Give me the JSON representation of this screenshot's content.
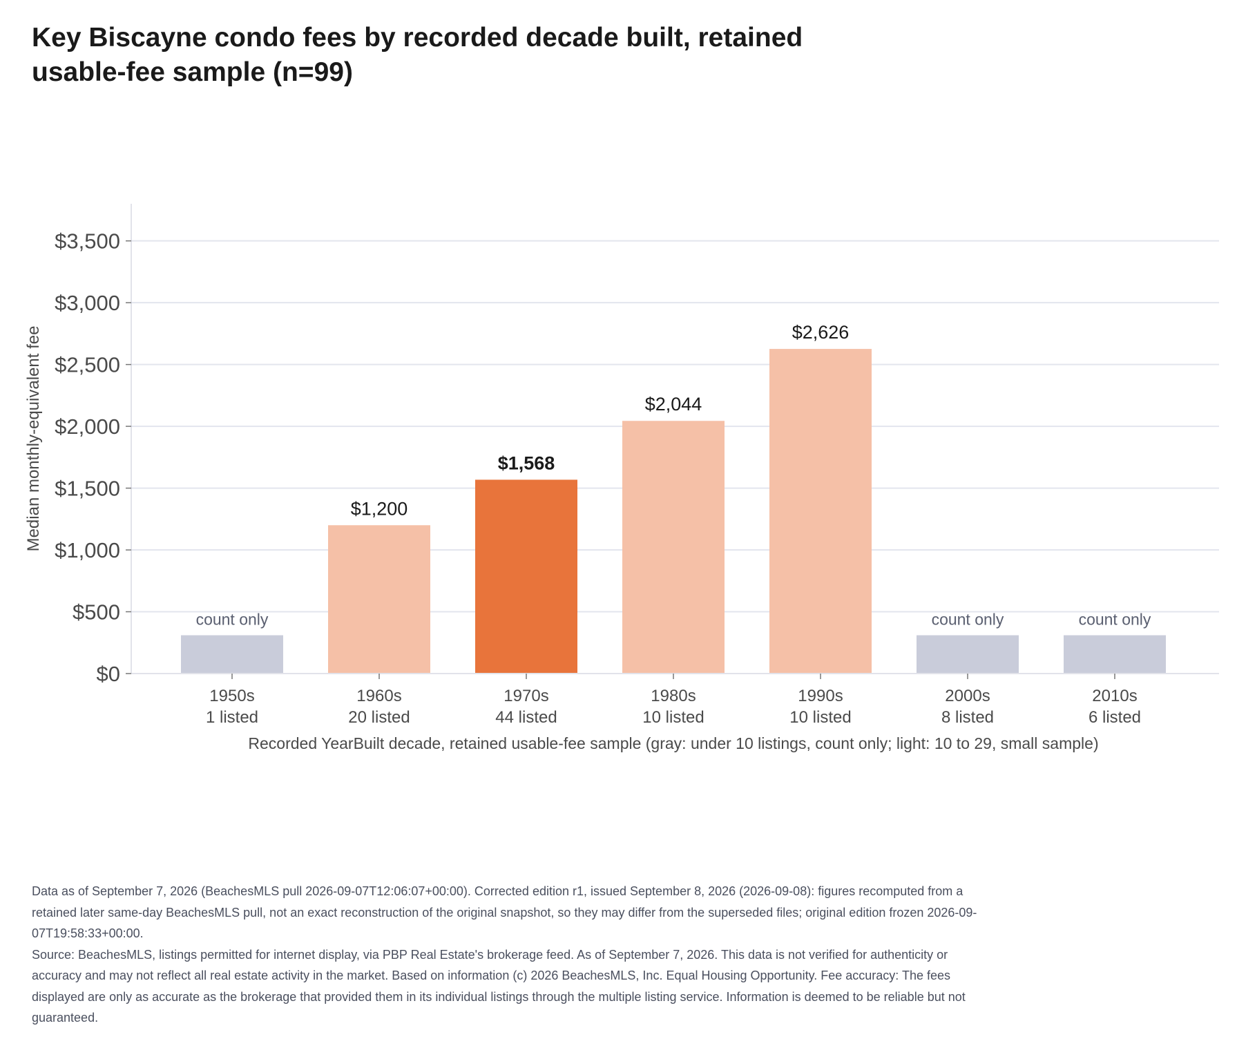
{
  "title_lines": [
    "Key Biscayne condo fees by recorded decade built, retained",
    "usable-fee sample (n=99)"
  ],
  "colors": {
    "highlight": "#E8743B",
    "small_sample": "#F5C0A7",
    "count_only": "#C9CCDA",
    "grid": "#E3E5EE",
    "axis_text": "#4a4a4a"
  },
  "chart_data": {
    "type": "bar",
    "categories": [
      "1950s",
      "1960s",
      "1970s",
      "1980s",
      "1990s",
      "2000s",
      "2010s"
    ],
    "counts_text": [
      "1 listed",
      "20 listed",
      "44 listed",
      "10 listed",
      "10 listed",
      "8 listed",
      "6 listed"
    ],
    "values": [
      null,
      1200,
      1568,
      2044,
      2626,
      null,
      null
    ],
    "display_values": [
      310,
      1200,
      1568,
      2044,
      2626,
      310,
      310
    ],
    "bar_kind": [
      "count_only",
      "small_sample",
      "highlight",
      "small_sample",
      "small_sample",
      "count_only",
      "count_only"
    ],
    "labels": [
      "count only",
      "$1,200",
      "$1,568",
      "$2,044",
      "$2,626",
      "count only",
      "count only"
    ],
    "ylabel": "Median monthly-equivalent fee",
    "xlabel": "Recorded YearBuilt decade, retained usable-fee sample (gray: under 10 listings, count only; light: 10 to 29, small sample)",
    "yticks": [
      0,
      500,
      1000,
      1500,
      2000,
      2500,
      3000,
      3500
    ],
    "ytick_labels": [
      "$0",
      "$500",
      "$1,000",
      "$1,500",
      "$2,000",
      "$2,500",
      "$3,000",
      "$3,500"
    ],
    "ylim": [
      0,
      3800
    ],
    "grid": true
  },
  "footnote": [
    "Data as of September 7, 2026 (BeachesMLS pull 2026-09-07T12:06:07+00:00). Corrected edition r1, issued September 8, 2026 (2026-09-08): figures recomputed from a retained later same-day BeachesMLS pull, not an exact reconstruction of the original snapshot, so they may differ from the superseded files; original edition frozen 2026-09-07T19:58:33+00:00.",
    "Source: BeachesMLS, listings permitted for internet display, via PBP Real Estate's brokerage feed. As of September 7, 2026. This data is not verified for authenticity or accuracy and may not reflect all real estate activity in the market. Based on information (c) 2026 BeachesMLS, Inc. Equal Housing Opportunity. Fee accuracy: The fees displayed are only as accurate as the brokerage that provided them in its individual listings through the multiple listing service. Information is deemed to be reliable but not guaranteed."
  ]
}
